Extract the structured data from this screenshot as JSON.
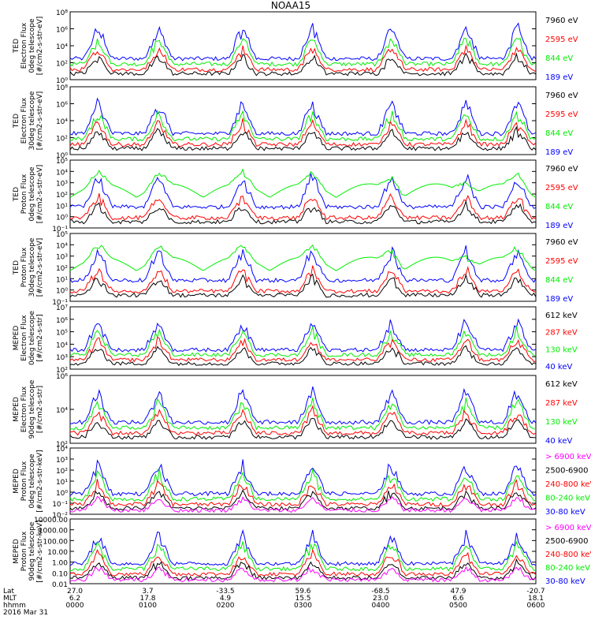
{
  "title": "NOAA15",
  "colors": {
    "blue": "#0000ff",
    "red": "#ff0000",
    "green": "#00ee00",
    "black": "#000000",
    "magenta": "#ff00ff"
  },
  "time_labels": {
    "row_labels": [
      "Lat",
      "MLT",
      "hhmm"
    ],
    "date": "2016 Mar 31",
    "ticks": [
      {
        "lat": "27.0",
        "mlt": "6.2",
        "hhmm": "0000"
      },
      {
        "lat": "3.7",
        "mlt": "17.8",
        "hhmm": "0100"
      },
      {
        "lat": "-33.5",
        "mlt": "4.9",
        "hhmm": "0200"
      },
      {
        "lat": "59.6",
        "mlt": "15.5",
        "hhmm": "0300"
      },
      {
        "lat": "-68.5",
        "mlt": "23.0",
        "hhmm": "0400"
      },
      {
        "lat": "47.9",
        "mlt": "6.6",
        "hhmm": "0500"
      },
      {
        "lat": "-20.7",
        "mlt": "18.1",
        "hhmm": "0600"
      }
    ]
  },
  "chart_data": [
    {
      "type": "line",
      "ylabel": [
        "TED",
        "Electron Flux",
        "0deg telescope",
        "[#/cm2-s-str-eV]"
      ],
      "yticks": [
        "10⁸",
        "10⁶",
        "10⁴",
        "10²",
        "10⁰"
      ],
      "ylog": [
        0,
        8
      ],
      "series": [
        {
          "name": "7960 eV",
          "color": "black"
        },
        {
          "name": "2595 eV",
          "color": "red"
        },
        {
          "name": "844 eV",
          "color": "green"
        },
        {
          "name": "189 eV",
          "color": "blue"
        }
      ]
    },
    {
      "type": "line",
      "ylabel": [
        "TED",
        "Electron Flux",
        "30deg telescope",
        "[#/cm2-s-str-eV]"
      ],
      "yticks": [
        "10⁸",
        "10⁶",
        "10⁴",
        "10²",
        "10⁰"
      ],
      "ylog": [
        0,
        8
      ],
      "series": [
        {
          "name": "7960 eV",
          "color": "black"
        },
        {
          "name": "2595 eV",
          "color": "red"
        },
        {
          "name": "844 eV",
          "color": "green"
        },
        {
          "name": "189 eV",
          "color": "blue"
        }
      ]
    },
    {
      "type": "line",
      "ylabel": [
        "TED",
        "Proton Flux",
        "0deg telescope",
        "[#/cm2-s-str-eV]"
      ],
      "yticks": [
        "10⁵",
        "10⁴",
        "10³",
        "10²",
        "10¹",
        "10⁰",
        "10⁻¹"
      ],
      "ylog": [
        -1,
        5
      ],
      "series": [
        {
          "name": "7960 eV",
          "color": "black"
        },
        {
          "name": "2595 eV",
          "color": "red"
        },
        {
          "name": "844 eV",
          "color": "green"
        },
        {
          "name": "189 eV",
          "color": "blue"
        }
      ]
    },
    {
      "type": "line",
      "ylabel": [
        "TED",
        "Proton Flux",
        "30deg telescope",
        "[#/cm2-s-str-eV]"
      ],
      "yticks": [
        "10⁵",
        "10⁴",
        "10³",
        "10²",
        "10¹",
        "10⁰",
        "10⁻¹"
      ],
      "ylog": [
        -1,
        5
      ],
      "series": [
        {
          "name": "7960 eV",
          "color": "black"
        },
        {
          "name": "2595 eV",
          "color": "red"
        },
        {
          "name": "844 eV",
          "color": "green"
        },
        {
          "name": "189 eV",
          "color": "blue"
        }
      ]
    },
    {
      "type": "line",
      "ylabel": [
        "MEPED",
        "Electron Flux",
        "0deg telescope",
        "[#/cm2-s-str]"
      ],
      "yticks": [
        "10⁷",
        "10⁶",
        "10⁵",
        "10⁴",
        "10³",
        "10²"
      ],
      "ylog": [
        2,
        7
      ],
      "series": [
        {
          "name": "612 keV",
          "color": "black"
        },
        {
          "name": "287 keV",
          "color": "red"
        },
        {
          "name": "130 keV",
          "color": "green"
        },
        {
          "name": "40 keV",
          "color": "blue"
        }
      ]
    },
    {
      "type": "line",
      "ylabel": [
        "MEPED",
        "Electron Flux",
        "90deg telescope",
        "[#/cm2-s-str]"
      ],
      "yticks": [
        "10⁶",
        "10⁴",
        "10²"
      ],
      "ylog": [
        2,
        6
      ],
      "series": [
        {
          "name": "612 keV",
          "color": "black"
        },
        {
          "name": "287 keV",
          "color": "red"
        },
        {
          "name": "130 keV",
          "color": "green"
        },
        {
          "name": "40 keV",
          "color": "blue"
        }
      ]
    },
    {
      "type": "line",
      "ylabel": [
        "MEPED",
        "Proton Flux",
        "0deg telescope",
        "[#/cm2-s-str-keV]"
      ],
      "yticks": [
        "10⁴",
        "10³",
        "10²",
        "10¹",
        "10⁰",
        "10⁻¹",
        "10⁻²"
      ],
      "ylog": [
        -2,
        4
      ],
      "series": [
        {
          "name": "> 6900 keV",
          "color": "magenta"
        },
        {
          "name": "2500-6900",
          "color": "black"
        },
        {
          "name": "240-800 keV",
          "color": "red"
        },
        {
          "name": "80-240 keV",
          "color": "green"
        },
        {
          "name": "30-80 keV",
          "color": "blue"
        }
      ]
    },
    {
      "type": "line",
      "ylabel": [
        "MEPED",
        "Proton Flux",
        "90deg telescope",
        "[#/cm2-s-str-keV]"
      ],
      "yticks": [
        "10000.00",
        "1000.00",
        "100.00",
        "10.00",
        "1.00",
        "0.10",
        "0.01"
      ],
      "ylog": [
        -2,
        4
      ],
      "series": [
        {
          "name": "> 6900 keV",
          "color": "magenta"
        },
        {
          "name": "2500-6900",
          "color": "black"
        },
        {
          "name": "240-800 keV",
          "color": "red"
        },
        {
          "name": "80-240 keV",
          "color": "green"
        },
        {
          "name": "30-80 keV",
          "color": "blue"
        }
      ]
    }
  ]
}
